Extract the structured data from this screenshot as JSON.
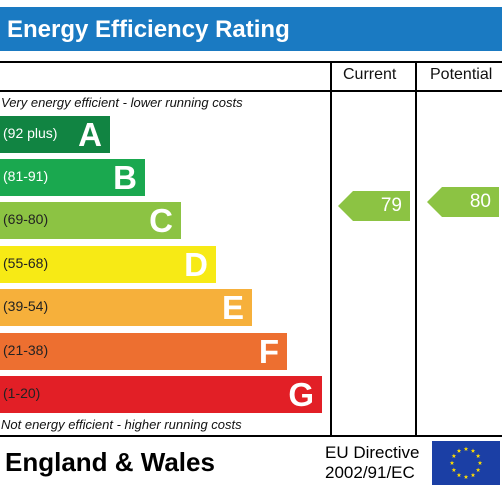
{
  "title": "Energy Efficiency Rating",
  "columns": {
    "current": "Current",
    "potential": "Potential"
  },
  "notes": {
    "top": "Very energy efficient - lower running costs",
    "bottom": "Not energy efficient - higher running costs"
  },
  "bands": [
    {
      "range": "(92 plus)",
      "letter": "A",
      "color": "#118442",
      "range_color": "#ffffff"
    },
    {
      "range": "(81-91)",
      "letter": "B",
      "color": "#1aa84f",
      "range_color": "#ffffff"
    },
    {
      "range": "(69-80)",
      "letter": "C",
      "color": "#8cc343",
      "range_color": "#222222"
    },
    {
      "range": "(55-68)",
      "letter": "D",
      "color": "#f7ea15",
      "range_color": "#222222"
    },
    {
      "range": "(39-54)",
      "letter": "E",
      "color": "#f6b03b",
      "range_color": "#222222"
    },
    {
      "range": "(21-38)",
      "letter": "F",
      "color": "#ed6f30",
      "range_color": "#222222"
    },
    {
      "range": "(1-20)",
      "letter": "G",
      "color": "#e21f26",
      "range_color": "#222222"
    }
  ],
  "ratings": {
    "current": {
      "value": "79",
      "color": "#8cc343"
    },
    "potential": {
      "value": "80",
      "color": "#8cc343"
    }
  },
  "footer": {
    "region": "England & Wales",
    "directive_line1": "EU Directive",
    "directive_line2": "2002/91/EC"
  }
}
